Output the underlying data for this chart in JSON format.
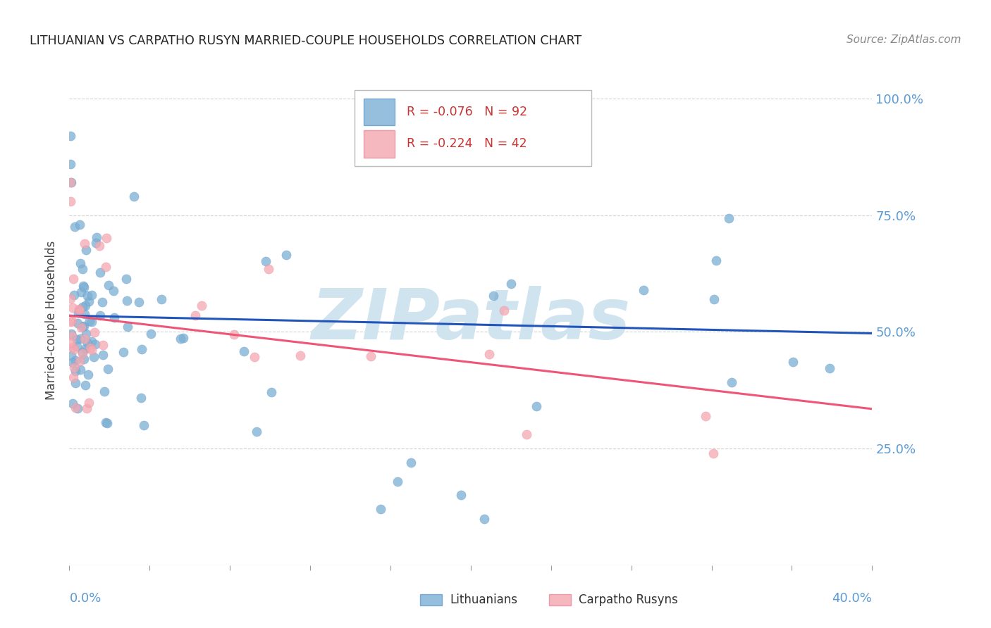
{
  "title": "LITHUANIAN VS CARPATHO RUSYN MARRIED-COUPLE HOUSEHOLDS CORRELATION CHART",
  "source": "Source: ZipAtlas.com",
  "ylabel": "Married-couple Households",
  "xlim": [
    0.0,
    0.4
  ],
  "ylim": [
    0.0,
    1.05
  ],
  "blue_color": "#7BAFD4",
  "pink_color": "#F4A7B0",
  "blue_edge": "#6699CC",
  "pink_edge": "#EE8899",
  "line_blue": "#2255BB",
  "line_pink": "#EE5577",
  "watermark_color": "#D0E4EF",
  "background": "#FFFFFF",
  "title_color": "#222222",
  "axis_label_color": "#5B9BD5",
  "grid_color": "#CCCCCC",
  "lith_line_y0": 0.535,
  "lith_line_y1": 0.497,
  "rusyn_line_y0": 0.535,
  "rusyn_line_y1": 0.335
}
